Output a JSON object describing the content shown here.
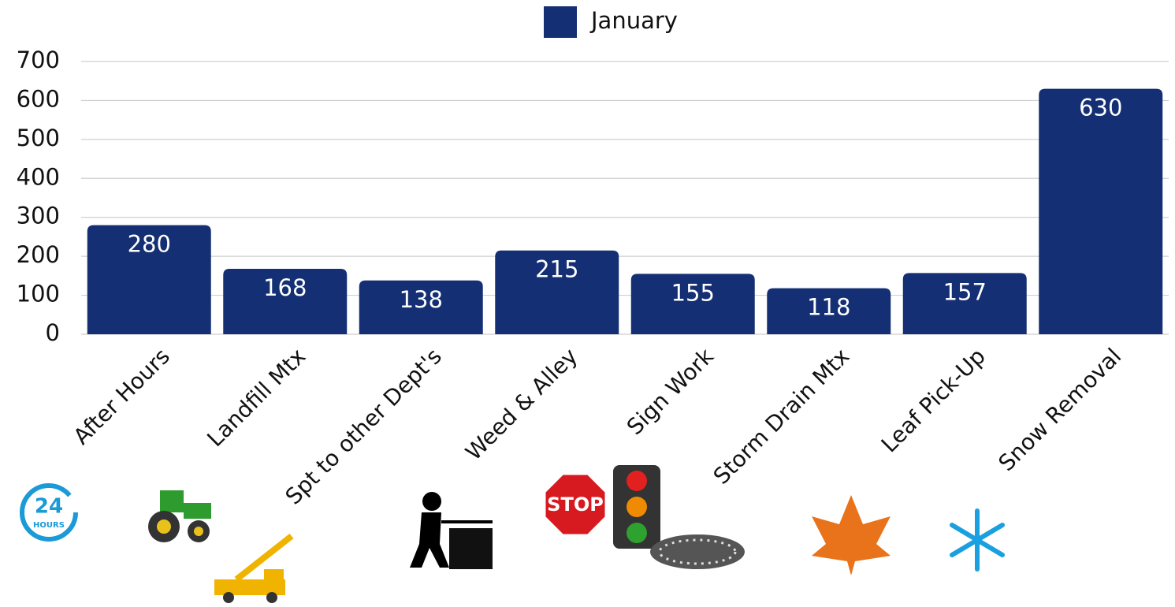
{
  "chart_data": {
    "type": "bar",
    "categories": [
      "After Hours",
      "Landfill Mtx",
      "Spt to other Dept's",
      "Weed & Alley",
      "Sign Work",
      "Storm Drain Mtx",
      "Leaf Pick-Up",
      "Snow Removal"
    ],
    "series": [
      {
        "name": "January",
        "color": "#142f73",
        "values": [
          280,
          168,
          138,
          215,
          155,
          118,
          157,
          630
        ]
      }
    ],
    "ylim": [
      0,
      700
    ],
    "yticks": [
      0,
      100,
      200,
      300,
      400,
      500,
      600,
      700
    ],
    "grid": true,
    "legend": "top",
    "annotations": [
      "24",
      "HOURS",
      "STOP"
    ]
  }
}
